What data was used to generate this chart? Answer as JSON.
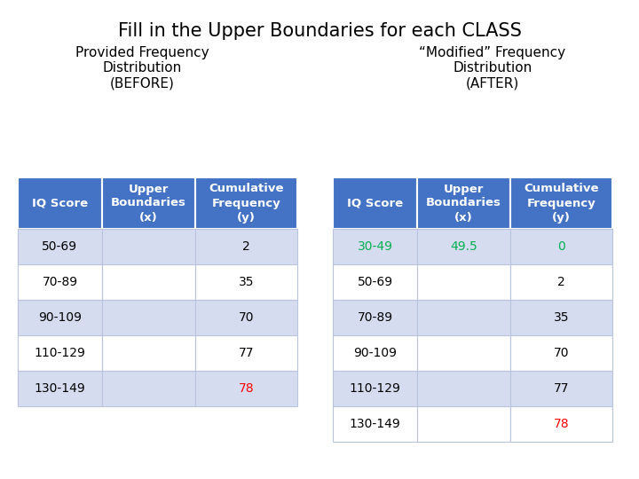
{
  "title": "Fill in the Upper Boundaries for each CLASS",
  "left_subtitle": "Provided Frequency\nDistribution\n(BEFORE)",
  "right_subtitle": "“Modified” Frequency\nDistribution\n(AFTER)",
  "header_bg": "#4472C4",
  "header_text": "#FFFFFF",
  "row_bg_light": "#D6DCF0",
  "row_bg_white": "#FFFFFF",
  "left_table": {
    "headers": [
      "IQ Score",
      "Upper\nBoundaries\n(x)",
      "Cumulative\nFrequency\n(y)"
    ],
    "rows": [
      [
        "50-69",
        "",
        "2"
      ],
      [
        "70-89",
        "",
        "35"
      ],
      [
        "90-109",
        "",
        "70"
      ],
      [
        "110-129",
        "",
        "77"
      ],
      [
        "130-149",
        "",
        "78"
      ]
    ],
    "special_cells": {
      "4_2": "#FF0000"
    }
  },
  "right_table": {
    "headers": [
      "IQ Score",
      "Upper\nBoundaries\n(x)",
      "Cumulative\nFrequency\n(y)"
    ],
    "rows": [
      [
        "30-49",
        "49.5",
        "0"
      ],
      [
        "50-69",
        "",
        "2"
      ],
      [
        "70-89",
        "",
        "35"
      ],
      [
        "90-109",
        "",
        "70"
      ],
      [
        "110-129",
        "",
        "77"
      ],
      [
        "130-149",
        "",
        "78"
      ]
    ],
    "special_cells": {
      "0_0": "#00B050",
      "0_1": "#00B050",
      "0_2": "#00B050",
      "5_2": "#FF0000"
    }
  },
  "background_color": "#FFFFFF",
  "title_fontsize": 15,
  "subtitle_fontsize": 11,
  "cell_fontsize": 10,
  "header_fontsize": 9.5
}
